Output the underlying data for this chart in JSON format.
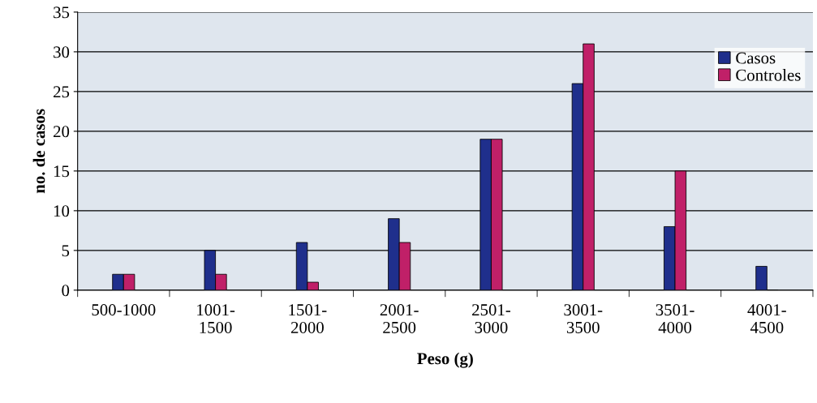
{
  "chart_data": {
    "type": "bar",
    "xlabel": "Peso (g)",
    "ylabel": "no. de casos",
    "categories": [
      "500-1000",
      "1001-\n1500",
      "1501-\n2000",
      "2001-\n2500",
      "2501-\n3000",
      "3001-\n3500",
      "3501-\n4000",
      "4001-\n4500"
    ],
    "series": [
      {
        "name": "Casos",
        "color": "#1f2f8c",
        "values": [
          2,
          5,
          6,
          9,
          19,
          26,
          8,
          3
        ]
      },
      {
        "name": "Controles",
        "color": "#c02068",
        "values": [
          2,
          2,
          1,
          6,
          19,
          31,
          15,
          0
        ]
      }
    ],
    "ylim": [
      0,
      35
    ],
    "yticks": [
      0,
      5,
      10,
      15,
      20,
      25,
      30,
      35
    ],
    "grid": "y",
    "legend": "top right"
  }
}
